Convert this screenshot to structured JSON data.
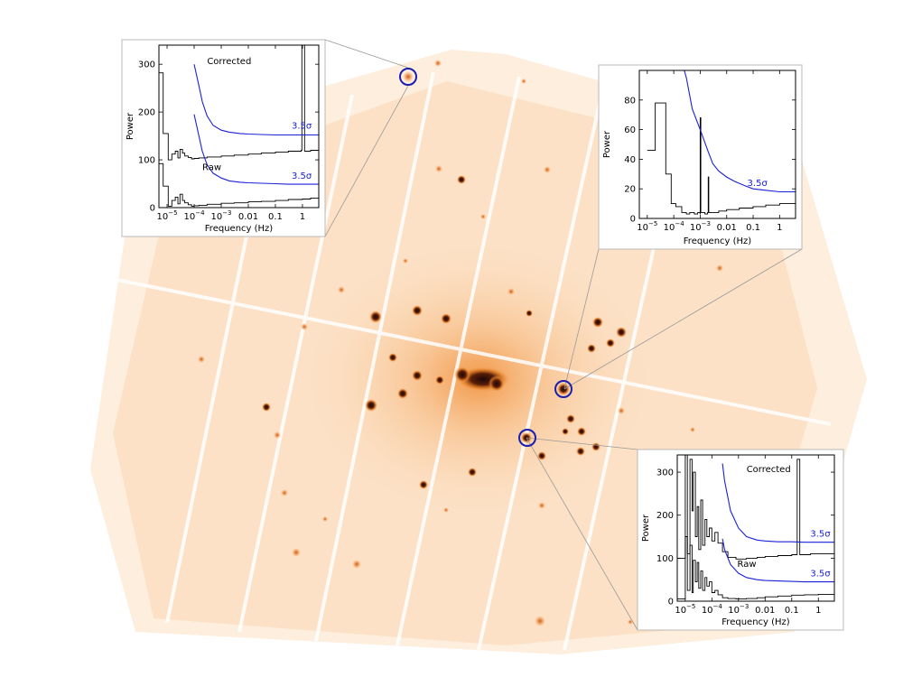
{
  "colors": {
    "sky_light": "#fde7cf",
    "sky_mid": "#f7b272",
    "source_core": "#2b0f0f",
    "source_halo": "#e07a1e",
    "threshold_line": "#1a20d6",
    "circle_marker": "#1a1fb0",
    "panel_border": "#b8b8b8",
    "axis": "#000000"
  },
  "chart_data": [
    {
      "type": "line",
      "panel": "top-left",
      "xlabel": "Frequency (Hz)",
      "ylabel": "Power",
      "x_scale": "log",
      "xlim": [
        5e-06,
        4
      ],
      "ylim": [
        0,
        340
      ],
      "yticks": [
        0,
        100,
        200,
        300
      ],
      "xtick_labels": [
        {
          "base": "10",
          "exp": "−5",
          "value": 1e-05
        },
        {
          "base": "10",
          "exp": "−4",
          "value": 0.0001
        },
        {
          "base": "10",
          "exp": "−3",
          "value": 0.001
        },
        {
          "base": "0.01",
          "exp": "",
          "value": 0.01
        },
        {
          "base": "0.1",
          "exp": "",
          "value": 0.1
        },
        {
          "base": "1",
          "exp": "",
          "value": 1
        }
      ],
      "annotations": [
        {
          "text": "Corrected",
          "x": 0.0003,
          "y": 300
        },
        {
          "text": "Raw",
          "x": 0.0002,
          "y": 78
        },
        {
          "text": "3.5σ",
          "x": 0.4,
          "y": 165,
          "color": "#1a20d6"
        },
        {
          "text": "3.5σ",
          "x": 0.4,
          "y": 60,
          "color": "#1a20d6"
        }
      ],
      "series": [
        {
          "color": "#000000",
          "style": "step",
          "x": [
            5e-06,
            7.2e-06,
            1.1e-05,
            1.5e-05,
            2e-05,
            2.5e-05,
            3e-05,
            3.7e-05,
            4.5e-05,
            6e-05,
            8e-05,
            0.0001,
            0.00015,
            0.0003,
            0.001,
            0.003,
            0.01,
            0.03,
            0.1,
            0.3,
            0.9,
            0.95,
            1.2,
            2,
            4
          ],
          "y": [
            282,
            155,
            100,
            112,
            118,
            104,
            122,
            114,
            108,
            105,
            102,
            103,
            104,
            106,
            108,
            110,
            112,
            114,
            116,
            118,
            120,
            340,
            118,
            120,
            122
          ]
        },
        {
          "color": "#000000",
          "style": "step",
          "x": [
            5e-06,
            7.2e-06,
            1.1e-05,
            1.5e-05,
            2e-05,
            2.5e-05,
            3e-05,
            3.7e-05,
            4.5e-05,
            6e-05,
            8e-05,
            0.0001,
            0.00015,
            0.0003,
            0.001,
            0.003,
            0.01,
            0.03,
            0.1,
            0.3,
            1,
            2,
            4
          ],
          "y": [
            92,
            45,
            3,
            15,
            22,
            8,
            28,
            15,
            10,
            6,
            3,
            4,
            5,
            7,
            9,
            10,
            12,
            13,
            15,
            17,
            18,
            20,
            22
          ]
        },
        {
          "name": "3.5σ",
          "color": "#1a20d6",
          "style": "line",
          "x": [
            0.0001,
            0.00015,
            0.0002,
            0.0003,
            0.0005,
            0.001,
            0.002,
            0.005,
            0.01,
            0.03,
            0.1,
            0.3,
            1,
            4
          ],
          "y": [
            300,
            255,
            222,
            192,
            172,
            162,
            158,
            155,
            154,
            153,
            152,
            152,
            152,
            152
          ]
        },
        {
          "name": "3.5σ",
          "color": "#1a20d6",
          "style": "line",
          "x": [
            0.0001,
            0.00015,
            0.0002,
            0.0003,
            0.0005,
            0.001,
            0.002,
            0.005,
            0.01,
            0.03,
            0.1,
            0.3,
            1,
            4
          ],
          "y": [
            195,
            150,
            118,
            90,
            72,
            62,
            56,
            53,
            52,
            51,
            50,
            49,
            49,
            49
          ]
        }
      ]
    },
    {
      "type": "line",
      "panel": "top-right",
      "xlabel": "Frequency (Hz)",
      "ylabel": "Power",
      "x_scale": "log",
      "xlim": [
        5e-06,
        4
      ],
      "ylim": [
        0,
        100
      ],
      "yticks": [
        0,
        20,
        40,
        60,
        80
      ],
      "xtick_labels": [
        {
          "base": "10",
          "exp": "−5",
          "value": 1e-05
        },
        {
          "base": "10",
          "exp": "−4",
          "value": 0.0001
        },
        {
          "base": "10",
          "exp": "−3",
          "value": 0.001
        },
        {
          "base": "0.01",
          "exp": "",
          "value": 0.01
        },
        {
          "base": "0.1",
          "exp": "",
          "value": 0.1
        },
        {
          "base": "1",
          "exp": "",
          "value": 1
        }
      ],
      "annotations": [
        {
          "text": "3.5σ",
          "x": 0.06,
          "y": 22,
          "color": "#1a20d6"
        }
      ],
      "series": [
        {
          "color": "#000000",
          "style": "step",
          "x": [
            1e-05,
            1.6e-05,
            2e-05,
            3.5e-05,
            5e-05,
            8e-05,
            0.00012,
            0.0002,
            0.0003,
            0.0004,
            0.0006,
            0.0008,
            0.00099,
            0.001,
            0.00105,
            0.0015,
            0.0019,
            0.002,
            0.0021,
            0.003,
            0.005,
            0.01,
            0.03,
            0.1,
            0.3,
            1,
            4
          ],
          "y": [
            46,
            46,
            78,
            78,
            30,
            10,
            8,
            4,
            3,
            4,
            3,
            4,
            3,
            68,
            4,
            3,
            4,
            28,
            4,
            4,
            5,
            6,
            7,
            8,
            9,
            10,
            11
          ]
        },
        {
          "name": "3.5σ",
          "color": "#1a20d6",
          "style": "line",
          "x": [
            0.00025,
            0.0003,
            0.0005,
            0.001,
            0.002,
            0.003,
            0.005,
            0.01,
            0.02,
            0.05,
            0.1,
            0.3,
            1,
            4
          ],
          "y": [
            100,
            95,
            74,
            60,
            45,
            37,
            32,
            28,
            25,
            22,
            20,
            19,
            18,
            18
          ]
        }
      ]
    },
    {
      "type": "line",
      "panel": "bottom-right",
      "xlabel": "Frequency (Hz)",
      "ylabel": "Power",
      "x_scale": "log",
      "xlim": [
        5e-06,
        4
      ],
      "ylim": [
        0,
        340
      ],
      "yticks": [
        0,
        100,
        200,
        300
      ],
      "xtick_labels": [
        {
          "base": "10",
          "exp": "−5",
          "value": 1e-05
        },
        {
          "base": "10",
          "exp": "−4",
          "value": 0.0001
        },
        {
          "base": "10",
          "exp": "−3",
          "value": 0.001
        },
        {
          "base": "0.01",
          "exp": "",
          "value": 0.01
        },
        {
          "base": "0.1",
          "exp": "",
          "value": 0.1
        },
        {
          "base": "1",
          "exp": "",
          "value": 1
        }
      ],
      "annotations": [
        {
          "text": "Corrected",
          "x": 0.002,
          "y": 300
        },
        {
          "text": "Raw",
          "x": 0.0009,
          "y": 80
        },
        {
          "text": "3.5σ",
          "x": 0.5,
          "y": 150,
          "color": "#1a20d6"
        },
        {
          "text": "3.5σ",
          "x": 0.5,
          "y": 58,
          "color": "#1a20d6"
        }
      ],
      "series": [
        {
          "color": "#000000",
          "style": "step",
          "x": [
            5e-06,
            1e-05,
            1.2e-05,
            1.5e-05,
            1.8e-05,
            2e-05,
            2.4e-05,
            2.8e-05,
            3.2e-05,
            3.8e-05,
            4.5e-05,
            5.5e-05,
            6.5e-05,
            8e-05,
            0.0001,
            0.00013,
            0.00017,
            0.00025,
            0.0004,
            0.0008,
            0.002,
            0.005,
            0.01,
            0.03,
            0.1,
            0.15,
            0.16,
            0.2,
            0.5,
            1,
            4
          ],
          "y": [
            100,
            340,
            110,
            330,
            210,
            300,
            150,
            220,
            120,
            235,
            130,
            190,
            150,
            170,
            140,
            160,
            135,
            115,
            102,
            98,
            100,
            102,
            104,
            106,
            108,
            108,
            330,
            108,
            110,
            110,
            112
          ]
        },
        {
          "color": "#000000",
          "style": "step",
          "x": [
            5e-06,
            1e-05,
            1.2e-05,
            1.5e-05,
            1.8e-05,
            2e-05,
            2.4e-05,
            2.8e-05,
            3.2e-05,
            3.8e-05,
            4.5e-05,
            5.5e-05,
            6.5e-05,
            8e-05,
            0.0001,
            0.00013,
            0.00017,
            0.00025,
            0.0004,
            0.0008,
            0.002,
            0.005,
            0.01,
            0.03,
            0.1,
            0.3,
            1,
            4
          ],
          "y": [
            5,
            150,
            25,
            130,
            20,
            95,
            45,
            90,
            30,
            70,
            25,
            55,
            35,
            45,
            20,
            25,
            15,
            8,
            6,
            5,
            6,
            8,
            10,
            12,
            14,
            15,
            16,
            18
          ]
        },
        {
          "name": "3.5σ",
          "color": "#1a20d6",
          "style": "line",
          "x": [
            0.00025,
            0.0003,
            0.0005,
            0.001,
            0.002,
            0.005,
            0.01,
            0.03,
            0.1,
            0.3,
            1,
            4
          ],
          "y": [
            320,
            280,
            210,
            170,
            150,
            142,
            140,
            138,
            138,
            137,
            137,
            137
          ]
        },
        {
          "name": "3.5σ",
          "color": "#1a20d6",
          "style": "line",
          "x": [
            0.00025,
            0.0003,
            0.0005,
            0.001,
            0.002,
            0.005,
            0.01,
            0.03,
            0.1,
            0.3,
            1,
            4
          ],
          "y": [
            145,
            120,
            85,
            65,
            55,
            50,
            48,
            47,
            46,
            45,
            45,
            45
          ]
        }
      ]
    }
  ]
}
